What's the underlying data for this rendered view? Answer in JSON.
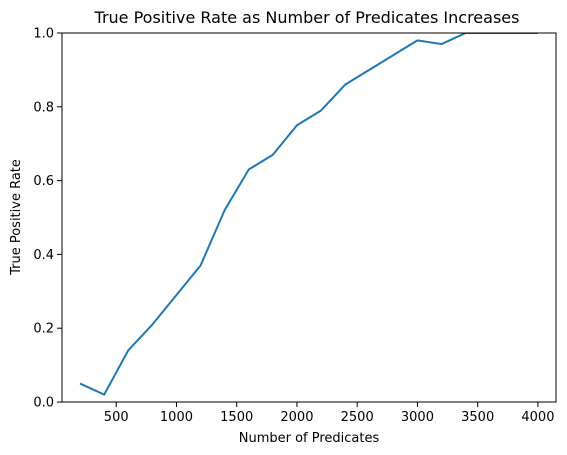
{
  "chart_data": {
    "type": "line",
    "title": "True Positive Rate as Number of Predicates Increases",
    "xlabel": "Number of Predicates",
    "ylabel": "True Positive Rate",
    "xlim": [
      50,
      4150
    ],
    "ylim": [
      0,
      1.0
    ],
    "xticks": [
      500,
      1000,
      1500,
      2000,
      2500,
      3000,
      3500,
      4000
    ],
    "xtick_labels": [
      "500",
      "1000",
      "1500",
      "2000",
      "2500",
      "3000",
      "3500",
      "4000"
    ],
    "yticks": [
      0.0,
      0.2,
      0.4,
      0.6,
      0.8,
      1.0
    ],
    "ytick_labels": [
      "0.0",
      "0.2",
      "0.4",
      "0.6",
      "0.8",
      "1.0"
    ],
    "grid": false,
    "series": [
      {
        "color": "#1f77b4",
        "x": [
          200,
          400,
          600,
          800,
          1000,
          1200,
          1400,
          1600,
          1800,
          2000,
          2200,
          2400,
          2600,
          2800,
          3000,
          3200,
          3400,
          3600,
          3800,
          4000
        ],
        "y": [
          0.05,
          0.02,
          0.14,
          0.21,
          0.29,
          0.37,
          0.52,
          0.63,
          0.67,
          0.75,
          0.79,
          0.86,
          0.9,
          0.94,
          0.98,
          0.97,
          1.0,
          1.0,
          1.0,
          1.0
        ]
      }
    ]
  }
}
